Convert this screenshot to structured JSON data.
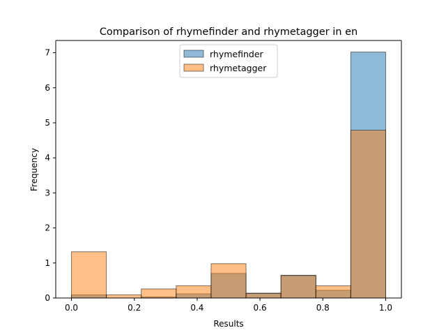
{
  "chart_data": {
    "type": "bar",
    "title": "Comparison of rhymefinder and rhymetagger in en",
    "xlabel": "Results",
    "ylabel": "Frequency",
    "xlim": [
      -0.05,
      1.05
    ],
    "ylim": [
      0,
      7.35
    ],
    "xticks": [
      0.0,
      0.2,
      0.4,
      0.6,
      0.8,
      1.0
    ],
    "xtick_labels": [
      "0.0",
      "0.2",
      "0.4",
      "0.6",
      "0.8",
      "1.0"
    ],
    "yticks": [
      0,
      1,
      2,
      3,
      4,
      5,
      6,
      7
    ],
    "ytick_labels": [
      "0",
      "1",
      "2",
      "3",
      "4",
      "5",
      "6",
      "7"
    ],
    "bin_edges": [
      0.0,
      0.1111,
      0.2222,
      0.3333,
      0.4444,
      0.5556,
      0.6667,
      0.7778,
      0.8889,
      1.0
    ],
    "legend_position": "upper center",
    "series": [
      {
        "name": "rhymefinder",
        "values": [
          0.09,
          0.0,
          0.03,
          0.12,
          0.7,
          0.14,
          0.65,
          0.22,
          7.02
        ],
        "color": "#1f77b4",
        "alpha": 0.5
      },
      {
        "name": "rhymetagger",
        "values": [
          1.32,
          0.09,
          0.26,
          0.35,
          0.98,
          0.13,
          0.64,
          0.35,
          4.79
        ],
        "color": "#ff7f0e",
        "alpha": 0.5
      }
    ]
  }
}
